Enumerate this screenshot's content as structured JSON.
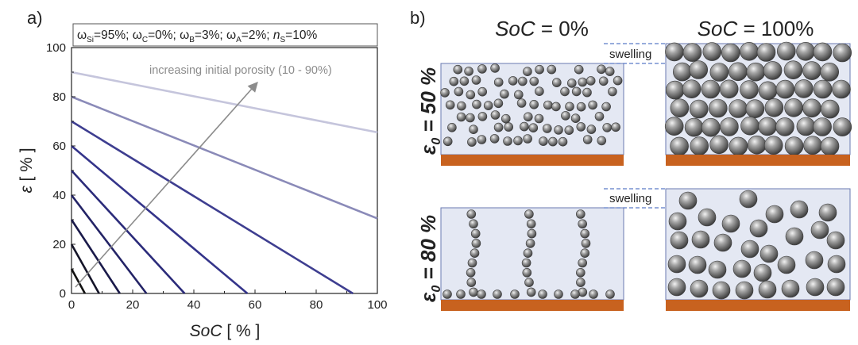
{
  "panel_a_label": "a)",
  "panel_b_label": "b)",
  "chart_data": {
    "type": "line",
    "parameter_box": {
      "omega_si": "95%",
      "omega_c": "0%",
      "omega_b": "3%",
      "omega_a": "2%",
      "n_s": "10%"
    },
    "annotation": "increasing initial porosity (10 - 90%)",
    "xlabel": {
      "symbol": "SoC",
      "unit": "[ % ]"
    },
    "ylabel": {
      "symbol": "ε",
      "unit": "[ % ]"
    },
    "xlim": [
      0,
      100
    ],
    "ylim": [
      0,
      100
    ],
    "xticks": [
      0,
      20,
      40,
      60,
      80,
      100
    ],
    "yticks": [
      0,
      20,
      40,
      60,
      80,
      100
    ],
    "grid": false,
    "series": [
      {
        "initial_porosity": 10,
        "points": [
          [
            0,
            10
          ],
          [
            4.4,
            0
          ]
        ],
        "color": "#111111"
      },
      {
        "initial_porosity": 20,
        "points": [
          [
            0,
            20
          ],
          [
            9.0,
            0
          ]
        ],
        "color": "#141428"
      },
      {
        "initial_porosity": 30,
        "points": [
          [
            0,
            30
          ],
          [
            15.8,
            0
          ]
        ],
        "color": "#1a1a4a"
      },
      {
        "initial_porosity": 40,
        "points": [
          [
            0,
            40
          ],
          [
            24.5,
            0
          ]
        ],
        "color": "#232366"
      },
      {
        "initial_porosity": 50,
        "points": [
          [
            0,
            50
          ],
          [
            37.0,
            0
          ]
        ],
        "color": "#2b2b7a"
      },
      {
        "initial_porosity": 60,
        "points": [
          [
            0,
            60
          ],
          [
            57.5,
            0
          ]
        ],
        "color": "#34348a"
      },
      {
        "initial_porosity": 70,
        "points": [
          [
            0,
            70
          ],
          [
            92.0,
            0
          ]
        ],
        "color": "#3e3e90"
      },
      {
        "initial_porosity": 80,
        "points": [
          [
            0,
            80
          ],
          [
            100,
            30.5
          ]
        ],
        "color": "#8a8ab8"
      },
      {
        "initial_porosity": 90,
        "points": [
          [
            0,
            90
          ],
          [
            100,
            65.5
          ]
        ],
        "color": "#c5c5dc"
      }
    ]
  },
  "panel_b": {
    "col1_title": {
      "symbol": "SoC",
      "value": " = 0%"
    },
    "col2_title": {
      "symbol": "SoC",
      "value": " = 100%"
    },
    "row1_label": {
      "symbol": "ε",
      "sub": "0",
      "value": " = 50 %"
    },
    "row2_label": {
      "symbol": "ε",
      "sub": "0",
      "value": " = 80 %"
    },
    "swelling_label_1": "swelling",
    "swelling_label_2": "swelling",
    "colors": {
      "box_fill": "#e4e8f3",
      "box_stroke": "#6a7ab0",
      "current_collector": "#c8621f",
      "particle": "#888888",
      "dashed_line": "#5b7bc8"
    }
  }
}
